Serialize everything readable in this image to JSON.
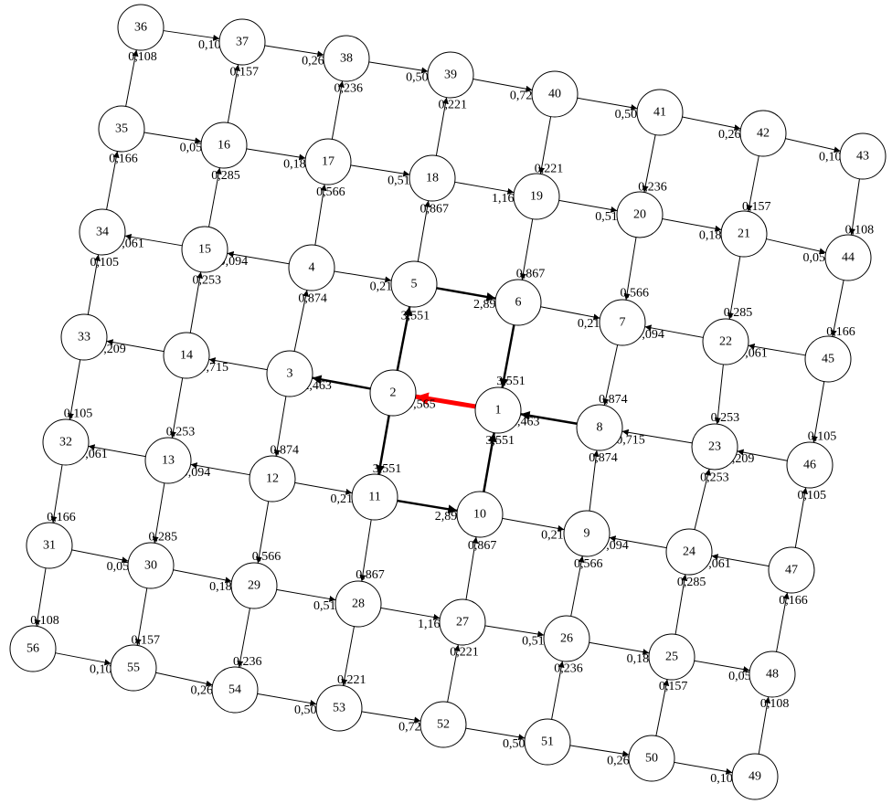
{
  "graph": {
    "colors": {
      "default": "#000000",
      "highlight": "#ff0000"
    },
    "nodes": [
      "1",
      "2",
      "3",
      "4",
      "5",
      "6",
      "7",
      "8",
      "9",
      "10",
      "11",
      "12",
      "13",
      "14",
      "15",
      "16",
      "17",
      "18",
      "19",
      "20",
      "21",
      "22",
      "23",
      "24",
      "25",
      "26",
      "27",
      "28",
      "29",
      "30",
      "31",
      "32",
      "33",
      "34",
      "35",
      "36",
      "37",
      "38",
      "39",
      "40",
      "41",
      "42",
      "43",
      "44",
      "45",
      "46",
      "47",
      "48",
      "49",
      "50",
      "51",
      "52",
      "53",
      "54",
      "55",
      "56"
    ],
    "edges": [
      {
        "from": "1",
        "to": "2",
        "label": "9,565",
        "weight": "heavy",
        "highlight": true
      },
      {
        "from": "2",
        "to": "3",
        "label": "2,463",
        "weight": "bold"
      },
      {
        "from": "2",
        "to": "5",
        "label": "3,551",
        "weight": "bold"
      },
      {
        "from": "2",
        "to": "11",
        "label": "3,551",
        "weight": "bold"
      },
      {
        "from": "5",
        "to": "6",
        "label": "2,898",
        "weight": "bold"
      },
      {
        "from": "6",
        "to": "1",
        "label": "3,551",
        "weight": "bold"
      },
      {
        "from": "11",
        "to": "10",
        "label": "2,898",
        "weight": "bold"
      },
      {
        "from": "10",
        "to": "1",
        "label": "3,551",
        "weight": "bold"
      },
      {
        "from": "8",
        "to": "1",
        "label": "2,463",
        "weight": "bold"
      },
      {
        "from": "3",
        "to": "14",
        "label": "0,715"
      },
      {
        "from": "3",
        "to": "4",
        "label": "0,874"
      },
      {
        "from": "3",
        "to": "12",
        "label": "0,874"
      },
      {
        "from": "4",
        "to": "15",
        "label": "0,094"
      },
      {
        "from": "4",
        "to": "5",
        "label": "0,214"
      },
      {
        "from": "4",
        "to": "17",
        "label": "0,566"
      },
      {
        "from": "5",
        "to": "18",
        "label": "0,867"
      },
      {
        "from": "6",
        "to": "7",
        "label": "0,214"
      },
      {
        "from": "7",
        "to": "8",
        "label": "0,874"
      },
      {
        "from": "9",
        "to": "8",
        "label": "0,874"
      },
      {
        "from": "10",
        "to": "9",
        "label": "0,214"
      },
      {
        "from": "11",
        "to": "28",
        "label": "0,867"
      },
      {
        "from": "12",
        "to": "11",
        "label": "0,214"
      },
      {
        "from": "12",
        "to": "13",
        "label": "0,094"
      },
      {
        "from": "12",
        "to": "29",
        "label": "0,566"
      },
      {
        "from": "13",
        "to": "32",
        "label": "0,061"
      },
      {
        "from": "13",
        "to": "30",
        "label": "0,285"
      },
      {
        "from": "14",
        "to": "33",
        "label": "0,209"
      },
      {
        "from": "14",
        "to": "15",
        "label": "0,253"
      },
      {
        "from": "14",
        "to": "13",
        "label": "0,253"
      },
      {
        "from": "15",
        "to": "34",
        "label": "0,061"
      },
      {
        "from": "15",
        "to": "16",
        "label": "0,285"
      },
      {
        "from": "16",
        "to": "17",
        "label": "0,186"
      },
      {
        "from": "16",
        "to": "37",
        "label": "0,157"
      },
      {
        "from": "17",
        "to": "18",
        "label": "0,516"
      },
      {
        "from": "17",
        "to": "38",
        "label": "0,236"
      },
      {
        "from": "18",
        "to": "19",
        "label": "1,165"
      },
      {
        "from": "18",
        "to": "39",
        "label": "0,221"
      },
      {
        "from": "19",
        "to": "20",
        "label": "0,516"
      },
      {
        "from": "19",
        "to": "6",
        "label": "0,867"
      },
      {
        "from": "20",
        "to": "21",
        "label": "0,186"
      },
      {
        "from": "20",
        "to": "7",
        "label": "0,566"
      },
      {
        "from": "21",
        "to": "44",
        "label": "0,058"
      },
      {
        "from": "21",
        "to": "22",
        "label": "0,285"
      },
      {
        "from": "22",
        "to": "7",
        "label": "0,094"
      },
      {
        "from": "22",
        "to": "23",
        "label": "0,253"
      },
      {
        "from": "23",
        "to": "8",
        "label": "0,715"
      },
      {
        "from": "24",
        "to": "23",
        "label": "0,253"
      },
      {
        "from": "24",
        "to": "9",
        "label": "0,094"
      },
      {
        "from": "25",
        "to": "24",
        "label": "0,285"
      },
      {
        "from": "25",
        "to": "48",
        "label": "0,058"
      },
      {
        "from": "26",
        "to": "9",
        "label": "0,566"
      },
      {
        "from": "26",
        "to": "25",
        "label": "0,186"
      },
      {
        "from": "27",
        "to": "10",
        "label": "0,867"
      },
      {
        "from": "27",
        "to": "26",
        "label": "0,516"
      },
      {
        "from": "28",
        "to": "27",
        "label": "1,165"
      },
      {
        "from": "28",
        "to": "53",
        "label": "0,221"
      },
      {
        "from": "29",
        "to": "28",
        "label": "0,516"
      },
      {
        "from": "29",
        "to": "54",
        "label": "0,236"
      },
      {
        "from": "30",
        "to": "29",
        "label": "0,186"
      },
      {
        "from": "30",
        "to": "55",
        "label": "0,157"
      },
      {
        "from": "31",
        "to": "30",
        "label": "0,058"
      },
      {
        "from": "31",
        "to": "56",
        "label": "0,108"
      },
      {
        "from": "32",
        "to": "31",
        "label": "0,166"
      },
      {
        "from": "33",
        "to": "32",
        "label": "0,105"
      },
      {
        "from": "33",
        "to": "34",
        "label": "0,105"
      },
      {
        "from": "34",
        "to": "35",
        "label": "0,166"
      },
      {
        "from": "35",
        "to": "16",
        "label": "0,058"
      },
      {
        "from": "35",
        "to": "36",
        "label": "0,108"
      },
      {
        "from": "36",
        "to": "37",
        "label": "0,108"
      },
      {
        "from": "37",
        "to": "38",
        "label": "0,265"
      },
      {
        "from": "38",
        "to": "39",
        "label": "0,501"
      },
      {
        "from": "39",
        "to": "40",
        "label": "0,722"
      },
      {
        "from": "40",
        "to": "41",
        "label": "0,501"
      },
      {
        "from": "40",
        "to": "19",
        "label": "0,221"
      },
      {
        "from": "41",
        "to": "42",
        "label": "0,265"
      },
      {
        "from": "41",
        "to": "20",
        "label": "0,236"
      },
      {
        "from": "42",
        "to": "43",
        "label": "0,108"
      },
      {
        "from": "42",
        "to": "21",
        "label": "0,157"
      },
      {
        "from": "43",
        "to": "44",
        "label": "0,108"
      },
      {
        "from": "44",
        "to": "45",
        "label": "0,166"
      },
      {
        "from": "45",
        "to": "22",
        "label": "0,061"
      },
      {
        "from": "45",
        "to": "46",
        "label": "0,105"
      },
      {
        "from": "46",
        "to": "23",
        "label": "0,209"
      },
      {
        "from": "47",
        "to": "46",
        "label": "0,105"
      },
      {
        "from": "47",
        "to": "24",
        "label": "0,061"
      },
      {
        "from": "48",
        "to": "47",
        "label": "0,166"
      },
      {
        "from": "49",
        "to": "48",
        "label": "0,108"
      },
      {
        "from": "50",
        "to": "49",
        "label": "0,108"
      },
      {
        "from": "50",
        "to": "25",
        "label": "0,157"
      },
      {
        "from": "51",
        "to": "50",
        "label": "0,265"
      },
      {
        "from": "51",
        "to": "26",
        "label": "0,236"
      },
      {
        "from": "52",
        "to": "51",
        "label": "0,501"
      },
      {
        "from": "52",
        "to": "27",
        "label": "0,221"
      },
      {
        "from": "53",
        "to": "52",
        "label": "0,722"
      },
      {
        "from": "54",
        "to": "53",
        "label": "0,501"
      },
      {
        "from": "55",
        "to": "54",
        "label": "0,265"
      },
      {
        "from": "56",
        "to": "55",
        "label": "0,108"
      }
    ]
  }
}
